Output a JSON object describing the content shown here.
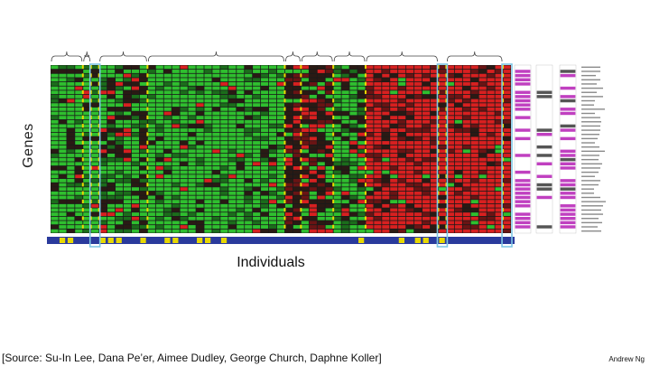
{
  "figure": {
    "y_axis_label": "Genes",
    "x_axis_label": "Individuals",
    "source_text": "[Source: Su-In Lee, Dana Pe’er, Aimee Dudley, George Church, Daphne Koller]",
    "credit": "Andrew Ng"
  },
  "colors": {
    "green": "#2fbf2f",
    "dark_green": "#1b6d1b",
    "red": "#d82020",
    "dark_red": "#6a1414",
    "near_black": "#2a1a14",
    "grid": "#1a1a1a",
    "yellow": "#e8d800",
    "blue": "#2a3a9c",
    "highlight": "#7ec6e4",
    "magenta": "#c040c0",
    "gray": "#999999"
  },
  "heatmap": {
    "rows": 40,
    "groups": [
      {
        "dominant": "green",
        "cols": 4,
        "bracket": true
      },
      {
        "dominant": "green",
        "cols": 1,
        "bracket": true
      },
      {
        "dominant": "green",
        "cols": 1,
        "bracket": false,
        "highlighted": true
      },
      {
        "dominant": "mixed-green",
        "cols": 6,
        "bracket": true
      },
      {
        "dominant": "green",
        "cols": 17,
        "bracket": true
      },
      {
        "dominant": "dark",
        "cols": 2,
        "bracket": true
      },
      {
        "dominant": "mixed",
        "cols": 4,
        "bracket": true
      },
      {
        "dominant": "mixed-green",
        "cols": 4,
        "bracket": true
      },
      {
        "dominant": "red",
        "cols": 9,
        "bracket": true
      },
      {
        "dominant": "red",
        "cols": 1,
        "bracket": false,
        "highlighted": true
      },
      {
        "dominant": "red",
        "cols": 7,
        "bracket": true
      },
      {
        "dominant": "red",
        "cols": 1,
        "bracket": false,
        "highlighted": true
      }
    ],
    "annotation_columns": 3
  }
}
